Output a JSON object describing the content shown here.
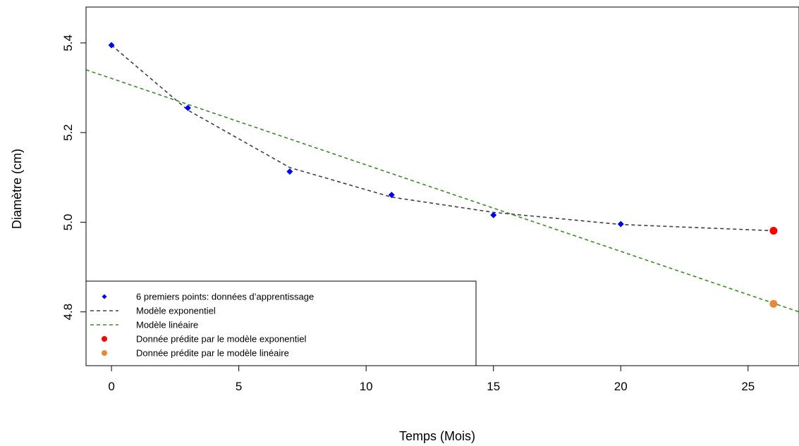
{
  "chart_data": {
    "type": "scatter",
    "title": "",
    "xlabel": "Temps (Mois)",
    "ylabel": "Diamètre (cm)",
    "xlim": [
      -1,
      27
    ],
    "ylim": [
      4.68,
      5.48
    ],
    "x_ticks": [
      0,
      5,
      10,
      15,
      20,
      25
    ],
    "y_ticks": [
      4.8,
      5.0,
      5.2,
      5.4
    ],
    "x_tick_labels": [
      "0",
      "5",
      "10",
      "15",
      "20",
      "25"
    ],
    "y_tick_labels": [
      "4.8",
      "5.0",
      "5.2",
      "5.4"
    ],
    "grid": false,
    "legend_position": "bottom-left",
    "series": [
      {
        "name": "6 premiers points: données d’apprentissage",
        "kind": "points",
        "marker": "diamond",
        "color": "#0000ff",
        "x": [
          0,
          3,
          7,
          11,
          15,
          20
        ],
        "y": [
          5.395,
          5.255,
          5.113,
          5.061,
          5.016,
          4.996
        ]
      },
      {
        "name": "Modèle exponentiel",
        "kind": "line",
        "dash": "dashed",
        "color": "#404040",
        "x": [
          0,
          3,
          7,
          11,
          15,
          20,
          26
        ],
        "y": [
          5.395,
          5.25,
          5.122,
          5.056,
          5.022,
          4.995,
          4.981
        ]
      },
      {
        "name": "Modèle linéaire",
        "kind": "line",
        "dash": "dashed",
        "color": "#3a8a2a",
        "x": [
          -1,
          27
        ],
        "y": [
          5.34,
          4.8
        ]
      },
      {
        "name": "Donnée prédite par le modèle exponentiel",
        "kind": "points",
        "marker": "circle",
        "color": "#ff0000",
        "x": [
          26
        ],
        "y": [
          4.981
        ]
      },
      {
        "name": "Donnée prédite par le modèle linéaire",
        "kind": "points",
        "marker": "circle",
        "color": "#e8893a",
        "x": [
          26
        ],
        "y": [
          4.818
        ]
      }
    ]
  }
}
